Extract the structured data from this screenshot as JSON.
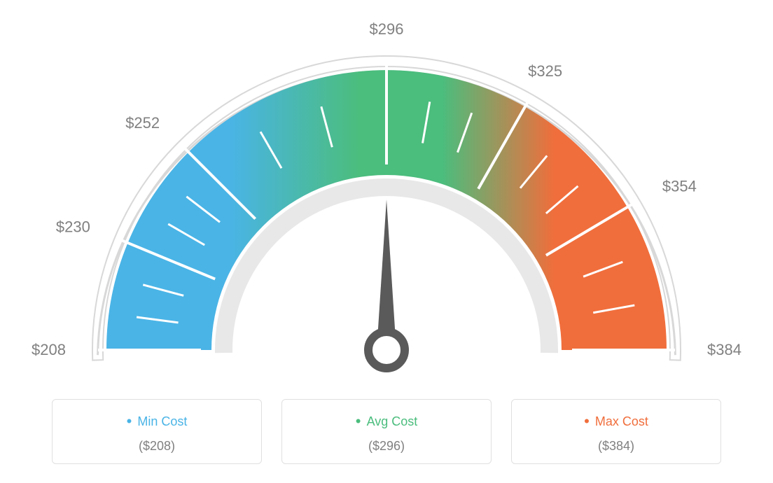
{
  "gauge": {
    "type": "gauge",
    "min_value": 208,
    "max_value": 384,
    "avg_value": 296,
    "needle_value": 296,
    "tick_values": [
      208,
      230,
      252,
      296,
      325,
      354,
      384
    ],
    "tick_labels": [
      "$208",
      "$230",
      "$252",
      "$296",
      "$325",
      "$354",
      "$384"
    ],
    "start_angle": 180,
    "end_angle": 0,
    "colors": {
      "min": "#4ab4e6",
      "avg": "#4bbd7d",
      "max": "#f06e3c",
      "arc_outline": "#d8d8d8",
      "arc_inner": "#e8e8e8",
      "tick_label": "#808080",
      "tick_line": "#ffffff",
      "needle": "#5a5a5a"
    },
    "radii": {
      "outer_arc_outer": 420,
      "outer_arc_inner": 405,
      "color_band_outer": 400,
      "color_band_inner": 250,
      "inner_arc_outer": 245,
      "inner_arc_inner": 220
    },
    "minor_ticks_per_major": 2
  },
  "legend": {
    "min": {
      "label": "Min Cost",
      "value": "($208)",
      "color": "#4ab4e6"
    },
    "avg": {
      "label": "Avg Cost",
      "value": "($296)",
      "color": "#4bbd7d"
    },
    "max": {
      "label": "Max Cost",
      "value": "($384)",
      "color": "#f06e3c"
    }
  }
}
